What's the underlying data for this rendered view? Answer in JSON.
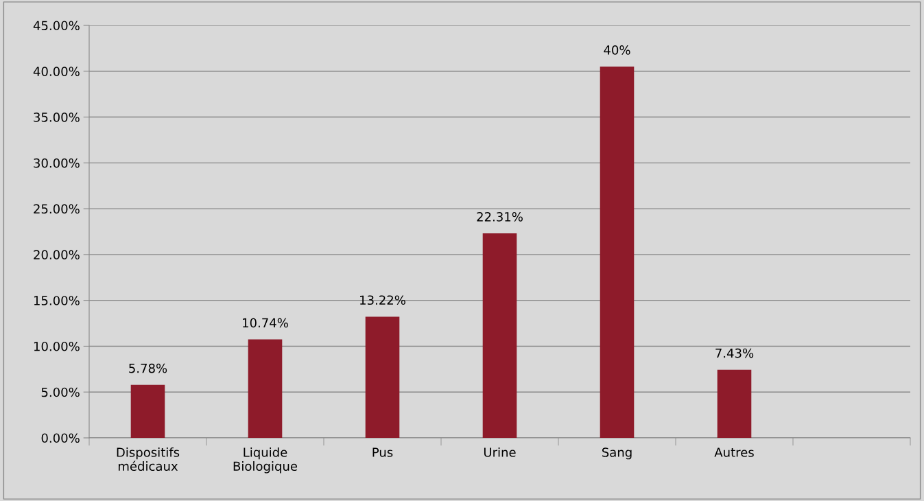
{
  "chart_data": {
    "type": "bar",
    "categories": [
      "Dispositifs\nmédicaux",
      "Liquide\nBiologique",
      "Pus",
      "Urine",
      "Sang",
      "Autres",
      null
    ],
    "values": [
      5.78,
      10.74,
      13.22,
      22.31,
      40.5,
      7.43,
      null
    ],
    "value_labels": [
      "5.78%",
      "10.74%",
      "13.22%",
      "22.31%",
      "40%",
      "7.43%",
      null
    ],
    "color": "#8e1b2a",
    "ylim": [
      0,
      45
    ],
    "yticks": [
      {
        "value": 0,
        "label": "0.00%"
      },
      {
        "value": 5,
        "label": "5.00%"
      },
      {
        "value": 10,
        "label": "10.00%"
      },
      {
        "value": 15,
        "label": "15.00%"
      },
      {
        "value": 20,
        "label": "20.00%"
      },
      {
        "value": 25,
        "label": "25.00%"
      },
      {
        "value": 30,
        "label": "30.00%"
      },
      {
        "value": 35,
        "label": "35.00%"
      },
      {
        "value": 40,
        "label": "40.00%"
      },
      {
        "value": 45,
        "label": "45.00%"
      }
    ],
    "grid": "y",
    "legend": false
  }
}
